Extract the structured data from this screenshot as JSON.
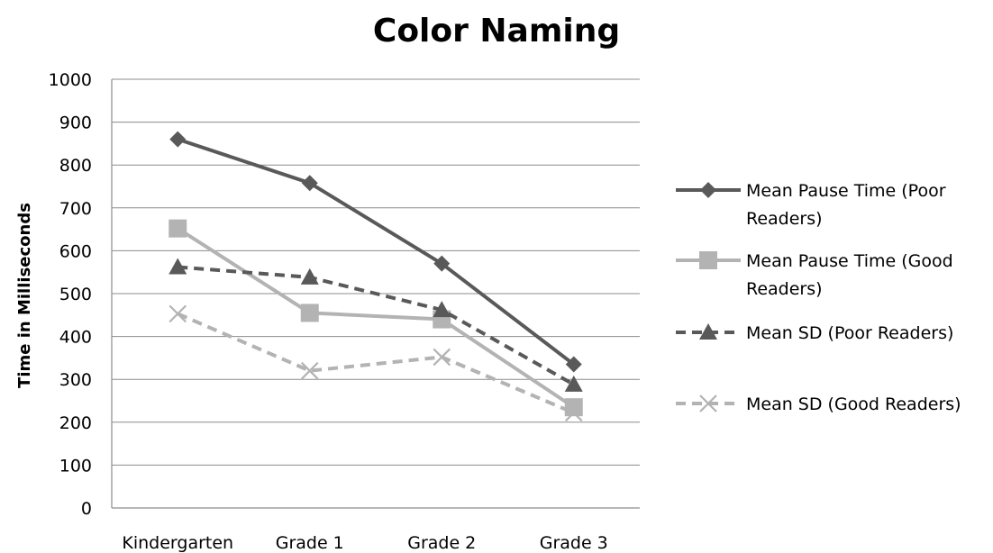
{
  "chart_data": {
    "type": "line",
    "title": "Color Naming",
    "xlabel": "",
    "ylabel": "Time in Milliseconds",
    "categories": [
      "Kindergarten",
      "Grade 1",
      "Grade 2",
      "Grade 3"
    ],
    "ylim": [
      0,
      1000
    ],
    "yticks": [
      "0",
      "100",
      "200",
      "300",
      "400",
      "500",
      "600",
      "700",
      "800",
      "900",
      "1000"
    ],
    "grid": true,
    "legend_position": "right",
    "series": [
      {
        "name": "Mean Pause Time (Poor Readers)",
        "values": [
          860,
          758,
          570,
          335
        ],
        "color": "#595959",
        "dash": "solid",
        "marker": "diamond"
      },
      {
        "name": "Mean Pause Time (Good Readers)",
        "values": [
          652,
          455,
          440,
          235
        ],
        "color": "#b3b3b3",
        "dash": "solid",
        "marker": "square"
      },
      {
        "name": "Mean SD (Poor Readers)",
        "values": [
          562,
          538,
          462,
          288
        ],
        "color": "#595959",
        "dash": "dashed",
        "marker": "triangle"
      },
      {
        "name": "Mean SD (Good Readers)",
        "values": [
          453,
          320,
          352,
          222
        ],
        "color": "#b3b3b3",
        "dash": "dashed",
        "marker": "x"
      }
    ]
  },
  "legend_lines": [
    [
      "Mean Pause Time (Poor",
      "Readers)"
    ],
    [
      "Mean Pause Time (Good",
      "Readers)"
    ],
    [
      "Mean SD (Poor Readers)"
    ],
    [
      "Mean SD (Good Readers)"
    ]
  ]
}
